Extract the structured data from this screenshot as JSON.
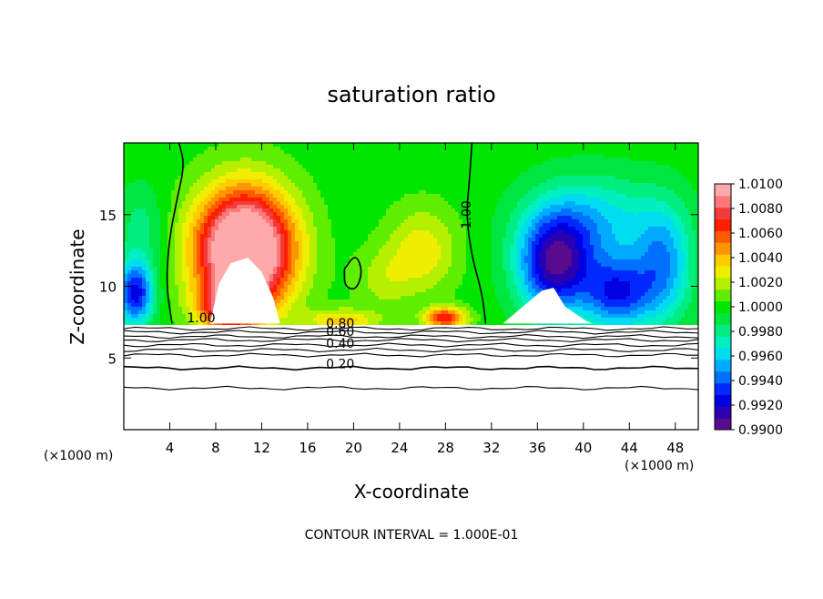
{
  "chart_data": {
    "type": "heatmap",
    "title": "saturation ratio",
    "xlabel": "X-coordinate",
    "ylabel": "Z-coordinate",
    "x_unit_left": "(×1000 m)",
    "x_unit_right": "(×1000 m)",
    "xlim": [
      0,
      50
    ],
    "ylim": [
      0,
      20
    ],
    "x_ticks": [
      4,
      8,
      12,
      16,
      20,
      24,
      28,
      32,
      36,
      40,
      44,
      48
    ],
    "y_ticks": [
      5,
      10,
      15
    ],
    "footer": "CONTOUR INTERVAL = 1.000E-01",
    "colorbar": {
      "labels": [
        "1.0100",
        "1.0080",
        "1.0060",
        "1.0040",
        "1.0020",
        "1.0000",
        "0.9980",
        "0.9960",
        "0.9940",
        "0.9920",
        "0.9900"
      ],
      "min": 0.99,
      "max": 1.01,
      "levels": [
        {
          "value": 0.99,
          "color": "#5a0a8c"
        },
        {
          "value": 0.991,
          "color": "#2a00b0"
        },
        {
          "value": 0.992,
          "color": "#0000e0"
        },
        {
          "value": 0.993,
          "color": "#0028ff"
        },
        {
          "value": 0.994,
          "color": "#0070ff"
        },
        {
          "value": 0.995,
          "color": "#00aaff"
        },
        {
          "value": 0.996,
          "color": "#00dcf0"
        },
        {
          "value": 0.997,
          "color": "#00f0c0"
        },
        {
          "value": 0.998,
          "color": "#00ee80"
        },
        {
          "value": 0.999,
          "color": "#00e640"
        },
        {
          "value": 1.0,
          "color": "#00e600"
        },
        {
          "value": 1.001,
          "color": "#60ee00"
        },
        {
          "value": 1.002,
          "color": "#b4f000"
        },
        {
          "value": 1.003,
          "color": "#eeee00"
        },
        {
          "value": 1.004,
          "color": "#ffcc00"
        },
        {
          "value": 1.005,
          "color": "#ff9600"
        },
        {
          "value": 1.006,
          "color": "#ff5a00"
        },
        {
          "value": 1.007,
          "color": "#ff1e00"
        },
        {
          "value": 1.008,
          "color": "#f03c3c"
        },
        {
          "value": 1.009,
          "color": "#ff7878"
        },
        {
          "value": 1.01,
          "color": "#ffaaaa"
        }
      ]
    },
    "contour_labels": [
      {
        "text": "1.00",
        "x": 30.2,
        "y": 14.0
      },
      {
        "text": "1.00",
        "x": 5.5,
        "y": 7.5
      },
      {
        "text": "0.80",
        "x": 17.6,
        "y": 7.1
      },
      {
        "text": "0.60",
        "x": 17.6,
        "y": 6.55
      },
      {
        "text": "0.40",
        "x": 17.6,
        "y": 5.7
      },
      {
        "text": "0.20",
        "x": 17.6,
        "y": 4.3
      }
    ],
    "contour_lines_1_00": [
      [
        [
          4.8,
          20
        ],
        [
          5.3,
          18.5
        ],
        [
          4.6,
          16
        ],
        [
          3.9,
          13
        ],
        [
          3.7,
          10
        ],
        [
          4.2,
          7.4
        ]
      ],
      [
        [
          30.3,
          20
        ],
        [
          30.1,
          17.5
        ],
        [
          29.8,
          15
        ],
        [
          30.3,
          12
        ],
        [
          31.2,
          9.5
        ],
        [
          31.5,
          7.4
        ]
      ],
      [
        [
          19.2,
          11.2
        ],
        [
          20.2,
          12.3
        ],
        [
          20.8,
          11.0
        ],
        [
          20.2,
          9.7
        ],
        [
          19.2,
          10.0
        ],
        [
          19.2,
          11.2
        ]
      ]
    ],
    "stable_contours_z": [
      7.05,
      6.8,
      6.5,
      6.25,
      5.9,
      5.55,
      5.2,
      4.3,
      2.9
    ],
    "terrain_top_z": 7.3,
    "field_features": [
      {
        "x": 10.5,
        "z": 12.5,
        "sx": 4.2,
        "sz": 4.2,
        "amp": 0.015
      },
      {
        "x": 9.0,
        "z": 8.5,
        "sx": 2.5,
        "sz": 1.6,
        "amp": 0.006
      },
      {
        "x": 26.0,
        "z": 12.5,
        "sx": 3.0,
        "sz": 3.0,
        "amp": 0.0032
      },
      {
        "x": 28.0,
        "z": 7.8,
        "sx": 1.8,
        "sz": 0.7,
        "amp": 0.0075
      },
      {
        "x": 19.0,
        "z": 7.6,
        "sx": 3.0,
        "sz": 0.8,
        "amp": 0.004
      },
      {
        "x": 22.5,
        "z": 10.5,
        "sx": 2.5,
        "sz": 2.2,
        "amp": 0.0018
      },
      {
        "x": 37.5,
        "z": 11.5,
        "sx": 3.2,
        "sz": 3.5,
        "amp": -0.009
      },
      {
        "x": 43.0,
        "z": 9.5,
        "sx": 3.0,
        "sz": 2.5,
        "amp": -0.007
      },
      {
        "x": 41.0,
        "z": 14.5,
        "sx": 5.5,
        "sz": 3.2,
        "amp": -0.004
      },
      {
        "x": 47.0,
        "z": 11.5,
        "sx": 2.5,
        "sz": 4.0,
        "amp": -0.005
      },
      {
        "x": 1.0,
        "z": 9.5,
        "sx": 1.6,
        "sz": 2.2,
        "amp": -0.008
      },
      {
        "x": 1.5,
        "z": 14.0,
        "sx": 2.0,
        "sz": 3.0,
        "amp": -0.002
      }
    ],
    "saturated_regions": [
      [
        [
          7.5,
          7.4
        ],
        [
          8.3,
          10.2
        ],
        [
          9.3,
          11.6
        ],
        [
          10.8,
          12.0
        ],
        [
          12.0,
          11.0
        ],
        [
          13.0,
          9.2
        ],
        [
          13.6,
          7.4
        ]
      ],
      [
        [
          33.0,
          7.4
        ],
        [
          34.6,
          8.5
        ],
        [
          36.4,
          9.7
        ],
        [
          37.4,
          9.9
        ],
        [
          38.4,
          8.6
        ],
        [
          40.2,
          7.6
        ],
        [
          40.8,
          7.4
        ]
      ]
    ]
  }
}
